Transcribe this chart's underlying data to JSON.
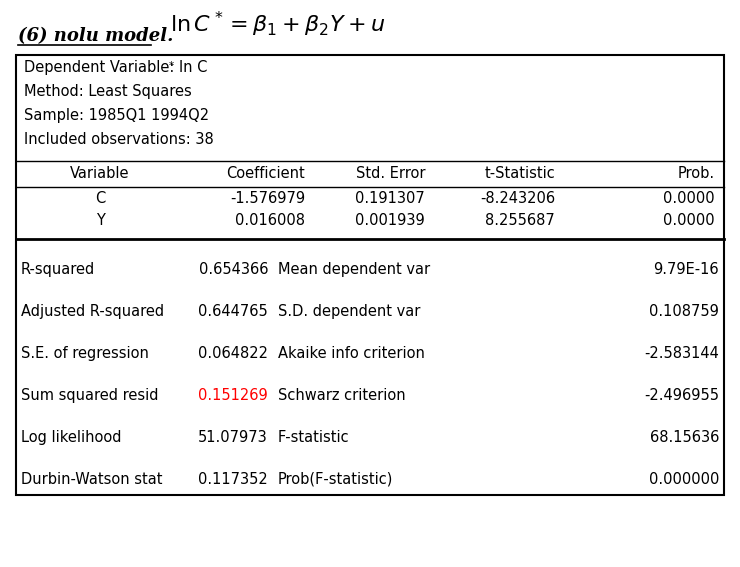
{
  "title_text": "(6) nolu model.",
  "formula": "$\\ln C^* = \\beta_1 + \\beta_2 Y + u$",
  "info_lines": [
    "Dependent Variable: ln C*",
    "Method: Least Squares",
    "Sample: 1985Q1 1994Q2",
    "Included observations: 38"
  ],
  "col_headers": [
    "Variable",
    "Coefficient",
    "Std. Error",
    "t-Statistic",
    "Prob."
  ],
  "data_rows": [
    [
      "C",
      "-1.576979",
      "0.191307",
      "-8.243206",
      "0.0000"
    ],
    [
      "Y",
      "0.016008",
      "0.001939",
      "8.255687",
      "0.0000"
    ]
  ],
  "stats_left_labels": [
    "R-squared",
    "Adjusted R-squared",
    "S.E. of regression",
    "Sum squared resid",
    "Log likelihood",
    "Durbin-Watson stat"
  ],
  "stats_left_vals": [
    "0.654366",
    "0.644765",
    "0.064822",
    "0.151269",
    "51.07973",
    "0.117352"
  ],
  "stats_right_labels": [
    "Mean dependent var",
    "S.D. dependent var",
    "Akaike info criterion",
    "Schwarz criterion",
    "F-statistic",
    "Prob(F-statistic)"
  ],
  "stats_right_vals": [
    "9.79E-16",
    "0.108759",
    "-2.583144",
    "-2.496955",
    "68.15636",
    "0.000000"
  ],
  "red_val": "0.151269",
  "bg_color": "#ffffff"
}
